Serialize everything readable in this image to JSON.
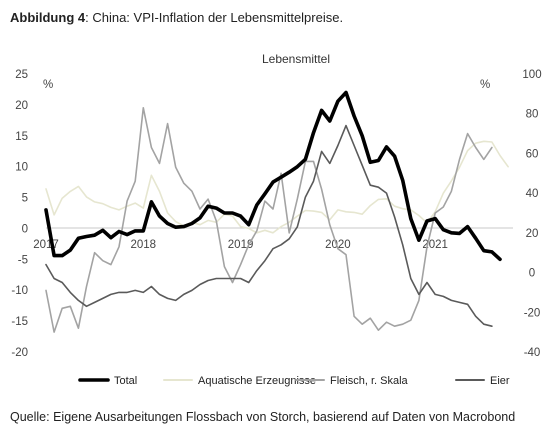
{
  "caption": {
    "bold": "Abbildung 4",
    "rest": ": China: VPI-Inflation der Lebensmittelpreise."
  },
  "source": "Quelle: Eigene Ausarbeitungen Flossbach von Storch, basierend auf Daten von Macrobond",
  "chart_data": {
    "type": "line",
    "title": "Lebensmittel",
    "left_unit": "%",
    "right_unit": "%",
    "xlim": [
      2017.0,
      2021.8
    ],
    "ylim": [
      -20,
      25
    ],
    "y2lim": [
      -40,
      100
    ],
    "yticks": [
      "25",
      "20",
      "15",
      "10",
      "5",
      "0",
      "-5",
      "-10",
      "-15",
      "-20"
    ],
    "y2ticks": [
      "100",
      "80",
      "60",
      "40",
      "20",
      "0",
      "-20",
      "-40"
    ],
    "xticks": [
      {
        "label": "2017",
        "x": 2017
      },
      {
        "label": "2018",
        "x": 2018
      },
      {
        "label": "2019",
        "x": 2019
      },
      {
        "label": "2020",
        "x": 2020
      },
      {
        "label": "2021",
        "x": 2021
      }
    ],
    "legend_position": "bottom",
    "series": [
      {
        "name": "Total",
        "axis": "left",
        "color": "#000000",
        "width": 3.6,
        "x0": 2017.0,
        "step": 0.08333,
        "values": [
          3.0,
          -4.4,
          -4.4,
          -3.5,
          -1.6,
          -1.3,
          -1.1,
          -0.3,
          -1.5,
          -0.5,
          -1.0,
          -0.4,
          -0.4,
          4.3,
          2.0,
          0.8,
          0.2,
          0.3,
          0.8,
          1.7,
          3.6,
          3.3,
          2.5,
          2.5,
          2.0,
          0.6,
          3.8,
          5.6,
          7.5,
          8.3,
          9.1,
          10.0,
          11.2,
          15.5,
          19.1,
          17.4,
          20.6,
          22.0,
          18.2,
          15.0,
          10.7,
          11.0,
          13.2,
          11.7,
          7.8,
          1.6,
          -1.9,
          1.2,
          1.6,
          -0.2,
          -0.7,
          -0.8,
          0.3,
          -1.6,
          -3.6,
          -3.8,
          -5.0
        ]
      },
      {
        "name": "Aquatische Erzeugnisse",
        "axis": "left",
        "color": "#e6e6d0",
        "width": 1.6,
        "x0": 2017.0,
        "step": 0.08333,
        "values": [
          6.4,
          2.2,
          4.9,
          6.0,
          6.8,
          5.1,
          4.3,
          4.0,
          3.4,
          3.0,
          3.6,
          4.1,
          3.3,
          8.6,
          6.0,
          2.5,
          1.1,
          0.4,
          1.0,
          0.6,
          1.3,
          1.0,
          2.3,
          2.0,
          0.3,
          0.0,
          -0.7,
          -0.3,
          -0.7,
          0.3,
          1.0,
          2.0,
          2.9,
          2.8,
          2.6,
          1.4,
          3.0,
          2.7,
          2.6,
          2.3,
          3.7,
          4.7,
          4.8,
          3.6,
          3.2,
          3.0,
          2.1,
          0.9,
          2.7,
          5.7,
          7.7,
          9.9,
          12.6,
          13.8,
          14.1,
          14.0,
          11.8,
          10.0
        ]
      },
      {
        "name": "Fleisch, r. Skala",
        "axis": "right",
        "color": "#a3a3a3",
        "width": 1.6,
        "x0": 2017.0,
        "step": 0.08333,
        "values": [
          -9,
          -30,
          -18,
          -17,
          -28,
          -7,
          10,
          6,
          4,
          13,
          36,
          46,
          83,
          63,
          55,
          75,
          53,
          45,
          41,
          32,
          37,
          26,
          3,
          -5,
          4,
          14,
          21,
          36,
          32,
          50,
          20,
          37,
          56,
          56,
          42,
          24,
          12,
          9,
          -22,
          -26,
          -23,
          -29,
          -25,
          -27,
          -26,
          -24,
          -14,
          13,
          30,
          33,
          41,
          57,
          70,
          63,
          57,
          63
        ]
      },
      {
        "name": "Eier",
        "axis": "right",
        "color": "#5a5a5a",
        "width": 1.6,
        "x0": 2017.0,
        "step": 0.08333,
        "values": [
          4,
          -3,
          -5,
          -10,
          -14,
          -17,
          -15,
          -13,
          -11,
          -10,
          -10,
          -9,
          -10,
          -7,
          -11,
          -13,
          -14,
          -11,
          -9,
          -6,
          -4,
          -3,
          -3,
          -3,
          -3,
          -5,
          1,
          6,
          12,
          14,
          17,
          23,
          38,
          46,
          61,
          55,
          64,
          74,
          64,
          54,
          44,
          43,
          40,
          28,
          14,
          -3,
          -11,
          -5,
          -11,
          -12,
          -14,
          -15,
          -16,
          -22,
          -26,
          -27
        ]
      }
    ]
  }
}
